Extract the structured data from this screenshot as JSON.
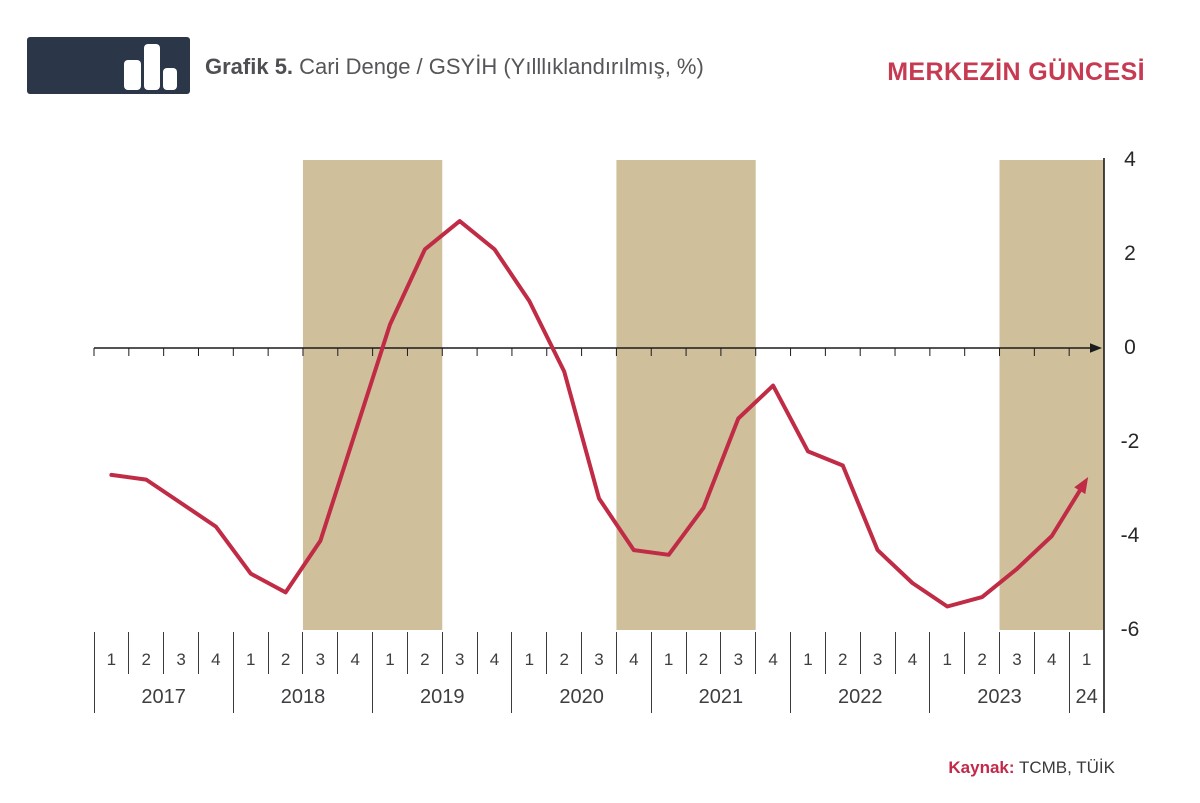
{
  "header": {
    "title_bold": "Grafik 5.",
    "title_rest": " Cari Denge / GSYİH (Yılllıklandırılmış, %)",
    "brand": "MERKEZİN GÜNCESİ",
    "brand_color": "#C63A52",
    "logo_color": "#2B3648"
  },
  "chart_data": {
    "type": "line",
    "title": "Cari Denge / GSYİH (Yılllıklandırılmış, %)",
    "ylabel": "",
    "xlabel": "",
    "ylim": [
      -6,
      4
    ],
    "yticks": [
      4,
      2,
      0,
      -2,
      -4,
      -6
    ],
    "grid": false,
    "legend": false,
    "line_color": "#C02B45",
    "band_color": "#CFC09B",
    "axis_color": "#1B1B1D",
    "x": [
      "2017Q1",
      "2017Q2",
      "2017Q3",
      "2017Q4",
      "2018Q1",
      "2018Q2",
      "2018Q3",
      "2018Q4",
      "2019Q1",
      "2019Q2",
      "2019Q3",
      "2019Q4",
      "2020Q1",
      "2020Q2",
      "2020Q3",
      "2020Q4",
      "2021Q1",
      "2021Q2",
      "2021Q3",
      "2021Q4",
      "2022Q1",
      "2022Q2",
      "2022Q3",
      "2022Q4",
      "2023Q1",
      "2023Q2",
      "2023Q3",
      "2023Q4",
      "2024Q1"
    ],
    "values": [
      -2.7,
      -2.8,
      -3.3,
      -3.8,
      -4.8,
      -5.2,
      -4.1,
      -1.8,
      0.5,
      2.1,
      2.7,
      2.1,
      1.0,
      -0.5,
      -3.2,
      -4.3,
      -4.4,
      -3.4,
      -1.5,
      -0.8,
      -2.2,
      -2.5,
      -4.3,
      -5.0,
      -5.5,
      -5.3,
      -4.7,
      -4.0,
      -2.8
    ],
    "shaded_bands_quarters": [
      [
        "2018Q3",
        "2019Q2"
      ],
      [
        "2020Q4",
        "2021Q3"
      ],
      [
        "2023Q3",
        "2024Q1"
      ]
    ],
    "bands_idx": [
      [
        6,
        10
      ],
      [
        15,
        19
      ],
      [
        26,
        29
      ]
    ],
    "axis_years": [
      {
        "label": "2017",
        "quarters": [
          "1",
          "2",
          "3",
          "4"
        ]
      },
      {
        "label": "2018",
        "quarters": [
          "1",
          "2",
          "3",
          "4"
        ]
      },
      {
        "label": "2019",
        "quarters": [
          "1",
          "2",
          "3",
          "4"
        ]
      },
      {
        "label": "2020",
        "quarters": [
          "1",
          "2",
          "3",
          "4"
        ]
      },
      {
        "label": "2021",
        "quarters": [
          "1",
          "2",
          "3",
          "4"
        ]
      },
      {
        "label": "2022",
        "quarters": [
          "1",
          "2",
          "3",
          "4"
        ]
      },
      {
        "label": "2023",
        "quarters": [
          "1",
          "2",
          "3",
          "4"
        ]
      },
      {
        "label": "24",
        "quarters": [
          "1"
        ]
      }
    ]
  },
  "source": {
    "label": "Kaynak:",
    "text": " TCMB, TÜİK"
  }
}
